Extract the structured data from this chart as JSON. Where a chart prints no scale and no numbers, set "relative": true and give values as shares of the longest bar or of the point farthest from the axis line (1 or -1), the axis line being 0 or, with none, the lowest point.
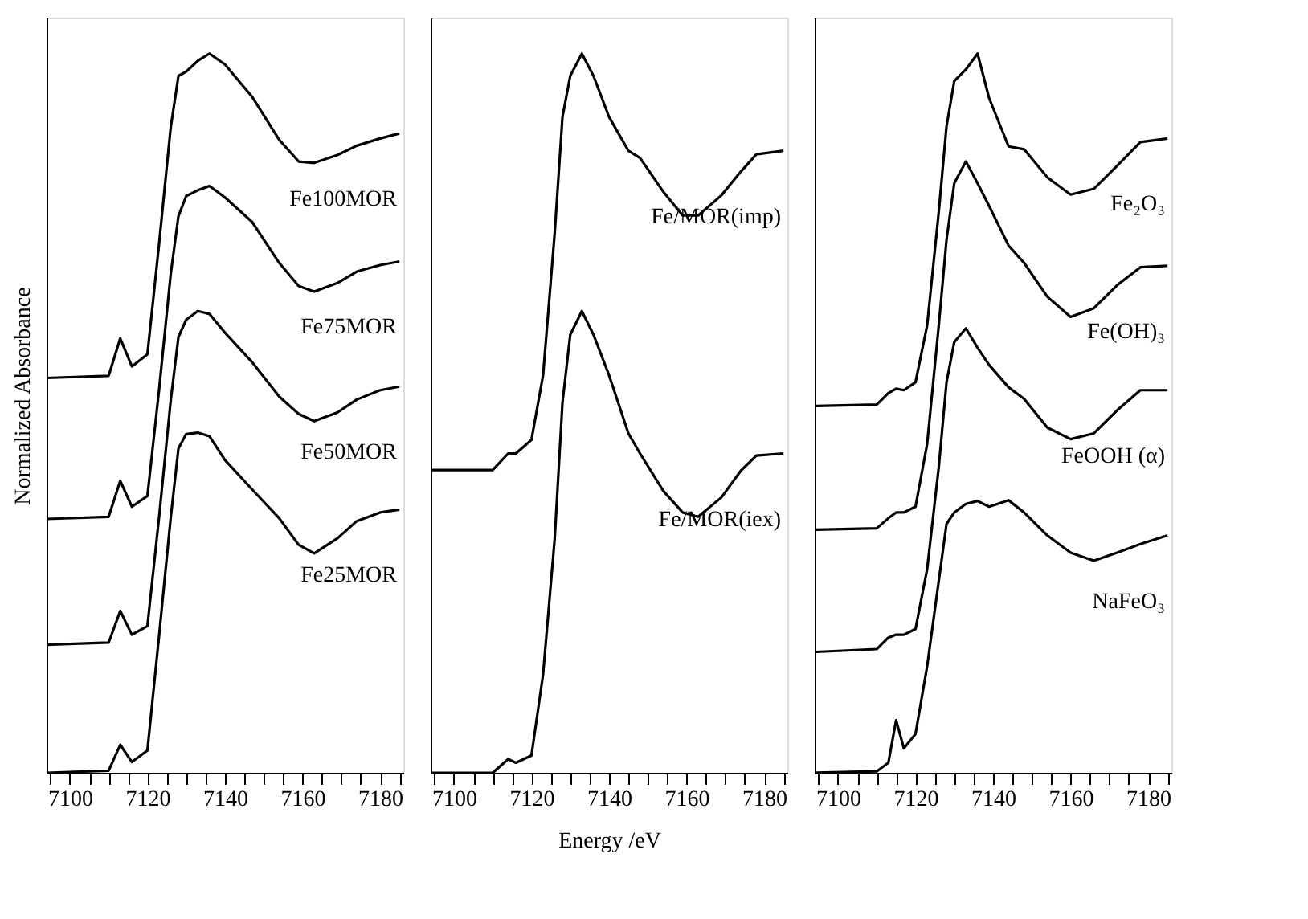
{
  "chart_data": [
    {
      "type": "line",
      "ylabel": "Normalized Absorbance",
      "relative": true,
      "tick_labels": "x",
      "grid": false,
      "legend": false,
      "marker": "none",
      "line_style": "solid",
      "xlim": [
        7094,
        7186
      ],
      "xticks": [
        {
          "value": 7095,
          "label": null
        },
        7100,
        {
          "value": 7105,
          "label": null
        },
        {
          "value": 7110,
          "label": null
        },
        {
          "value": 7115,
          "label": null
        },
        7120,
        {
          "value": 7125,
          "label": null
        },
        {
          "value": 7130,
          "label": null
        },
        {
          "value": 7135,
          "label": null
        },
        7140,
        {
          "value": 7145,
          "label": null
        },
        {
          "value": 7150,
          "label": null
        },
        {
          "value": 7155,
          "label": null
        },
        7160,
        {
          "value": 7165,
          "label": null
        },
        {
          "value": 7170,
          "label": null
        },
        {
          "value": 7175,
          "label": null
        },
        7180,
        {
          "value": 7185,
          "label": null
        }
      ],
      "x": [
        7094,
        7110,
        7113,
        7116,
        7120,
        7123,
        7126,
        7128,
        7130,
        7133,
        7136,
        7140,
        7147,
        7154,
        7159,
        7163,
        7169,
        7174,
        7180,
        7185
      ],
      "series": [
        {
          "name": "Fe100MOR",
          "color": "#000000",
          "values": [
            0.549,
            0.552,
            0.604,
            0.565,
            0.582,
            0.735,
            0.897,
            0.969,
            0.975,
            0.99,
            1.0,
            0.985,
            0.94,
            0.88,
            0.85,
            0.848,
            0.859,
            0.872,
            0.882,
            0.889
          ]
        },
        {
          "name": "Fe75MOR",
          "color": "#000000",
          "values": [
            0.353,
            0.356,
            0.406,
            0.37,
            0.385,
            0.532,
            0.693,
            0.774,
            0.802,
            0.81,
            0.816,
            0.8,
            0.766,
            0.709,
            0.677,
            0.669,
            0.681,
            0.697,
            0.706,
            0.711
          ]
        },
        {
          "name": "Fe50MOR",
          "color": "#000000",
          "values": [
            0.178,
            0.181,
            0.225,
            0.192,
            0.204,
            0.355,
            0.517,
            0.606,
            0.63,
            0.642,
            0.638,
            0.612,
            0.571,
            0.523,
            0.499,
            0.489,
            0.501,
            0.519,
            0.532,
            0.537
          ]
        },
        {
          "name": "Fe25MOR",
          "color": "#000000",
          "values": [
            0,
            0.003,
            0.039,
            0.015,
            0.031,
            0.19,
            0.354,
            0.451,
            0.471,
            0.473,
            0.468,
            0.435,
            0.394,
            0.354,
            0.317,
            0.305,
            0.326,
            0.35,
            0.362,
            0.366
          ]
        }
      ]
    },
    {
      "type": "line",
      "xlabel": "Energy /eV",
      "relative": true,
      "tick_labels": "x",
      "grid": false,
      "legend": false,
      "marker": "none",
      "line_style": "solid",
      "xlim": [
        7094,
        7186
      ],
      "xticks": [
        {
          "value": 7095,
          "label": null
        },
        7100,
        {
          "value": 7105,
          "label": null
        },
        {
          "value": 7110,
          "label": null
        },
        {
          "value": 7115,
          "label": null
        },
        7120,
        {
          "value": 7125,
          "label": null
        },
        {
          "value": 7130,
          "label": null
        },
        {
          "value": 7135,
          "label": null
        },
        7140,
        {
          "value": 7145,
          "label": null
        },
        {
          "value": 7150,
          "label": null
        },
        {
          "value": 7155,
          "label": null
        },
        7160,
        {
          "value": 7165,
          "label": null
        },
        {
          "value": 7170,
          "label": null
        },
        {
          "value": 7175,
          "label": null
        },
        7180,
        {
          "value": 7185,
          "label": null
        }
      ],
      "x": [
        7094,
        7110,
        7114,
        7116,
        7120,
        7123,
        7126,
        7128,
        7130,
        7133,
        7136,
        7140,
        7145,
        7148,
        7154,
        7159,
        7163,
        7169,
        7174,
        7178,
        7185
      ],
      "series": [
        {
          "name": "Fe/MOR(imp)",
          "color": "#000000",
          "values": [
            0.421,
            0.421,
            0.444,
            0.444,
            0.463,
            0.553,
            0.751,
            0.912,
            0.969,
            1.0,
            0.969,
            0.912,
            0.865,
            0.855,
            0.808,
            0.775,
            0.775,
            0.803,
            0.836,
            0.86,
            0.865
          ]
        },
        {
          "name": "Fe/MOR(iex)",
          "color": "#000000",
          "values": [
            0,
            0,
            0.019,
            0.014,
            0.024,
            0.137,
            0.326,
            0.515,
            0.609,
            0.642,
            0.609,
            0.553,
            0.472,
            0.444,
            0.392,
            0.362,
            0.356,
            0.383,
            0.42,
            0.441,
            0.444
          ]
        }
      ]
    },
    {
      "type": "line",
      "relative": true,
      "tick_labels": "x",
      "grid": false,
      "legend": false,
      "marker": "none",
      "line_style": "solid",
      "xlim": [
        7094,
        7186
      ],
      "xticks": [
        {
          "value": 7095,
          "label": null
        },
        7100,
        {
          "value": 7105,
          "label": null
        },
        {
          "value": 7110,
          "label": null
        },
        {
          "value": 7115,
          "label": null
        },
        7120,
        {
          "value": 7125,
          "label": null
        },
        {
          "value": 7130,
          "label": null
        },
        {
          "value": 7135,
          "label": null
        },
        7140,
        {
          "value": 7145,
          "label": null
        },
        {
          "value": 7150,
          "label": null
        },
        {
          "value": 7155,
          "label": null
        },
        7160,
        {
          "value": 7165,
          "label": null
        },
        {
          "value": 7170,
          "label": null
        },
        {
          "value": 7175,
          "label": null
        },
        7180,
        {
          "value": 7185,
          "label": null
        }
      ],
      "x": [
        7094,
        7110,
        7113,
        7115,
        7117,
        7120,
        7123,
        7126,
        7128,
        7130,
        7133,
        7136,
        7139,
        7144,
        7148,
        7154,
        7160,
        7166,
        7172,
        7178,
        7185
      ],
      "series": [
        {
          "name": "Fe₂O₃",
          "color": "#000000",
          "values": [
            0.51,
            0.512,
            0.528,
            0.534,
            0.532,
            0.543,
            0.622,
            0.78,
            0.899,
            0.962,
            0.978,
            1.0,
            0.938,
            0.871,
            0.867,
            0.828,
            0.804,
            0.812,
            0.844,
            0.877,
            0.882
          ]
        },
        {
          "name": "Fe(OH)₃",
          "color": "#000000",
          "values": [
            0.338,
            0.34,
            0.354,
            0.362,
            0.362,
            0.37,
            0.457,
            0.622,
            0.741,
            0.82,
            0.85,
            0.82,
            0.788,
            0.733,
            0.709,
            0.662,
            0.634,
            0.646,
            0.678,
            0.703,
            0.705
          ]
        },
        {
          "name": "FeOOH (α)",
          "color": "#000000",
          "values": [
            0.168,
            0.172,
            0.188,
            0.192,
            0.192,
            0.2,
            0.283,
            0.425,
            0.543,
            0.599,
            0.618,
            0.591,
            0.567,
            0.536,
            0.52,
            0.48,
            0.464,
            0.472,
            0.504,
            0.532,
            0.532
          ]
        },
        {
          "name": "NaFeO₃",
          "color": "#000000",
          "values": [
            0,
            0.002,
            0.014,
            0.073,
            0.034,
            0.054,
            0.148,
            0.267,
            0.346,
            0.362,
            0.374,
            0.378,
            0.37,
            0.379,
            0.362,
            0.33,
            0.306,
            0.295,
            0.306,
            0.318,
            0.33
          ]
        }
      ]
    }
  ]
}
